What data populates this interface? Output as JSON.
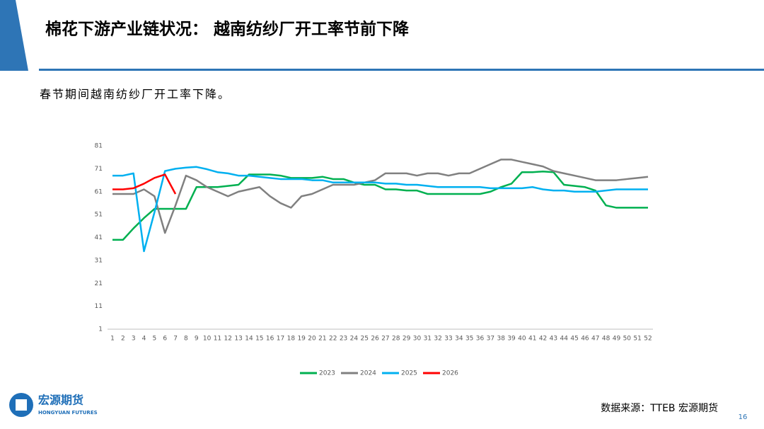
{
  "header": {
    "title": "棉花下游产业链状况：  越南纺纱厂开工率节前下降",
    "subtitle": "春节期间越南纺纱厂开工率下降。"
  },
  "footer": {
    "source": "数据来源：TTEB   宏源期货",
    "page": "16",
    "logo_cn": "宏源期货",
    "logo_en": "HONGYUAN FUTURES"
  },
  "chart_data": {
    "type": "line",
    "categories": [
      "1",
      "2",
      "3",
      "4",
      "5",
      "6",
      "7",
      "8",
      "9",
      "10",
      "11",
      "12",
      "13",
      "14",
      "15",
      "16",
      "17",
      "18",
      "19",
      "20",
      "21",
      "22",
      "23",
      "24",
      "25",
      "26",
      "27",
      "28",
      "29",
      "30",
      "31",
      "32",
      "33",
      "34",
      "35",
      "36",
      "37",
      "38",
      "39",
      "40",
      "41",
      "42",
      "43",
      "44",
      "45",
      "46",
      "47",
      "48",
      "49",
      "50",
      "51",
      "52"
    ],
    "ylim": [
      1,
      81
    ],
    "yticks": [
      1,
      11,
      21,
      31,
      41,
      51,
      61,
      71,
      81
    ],
    "grid": false,
    "legend": "bottom",
    "series": [
      {
        "name": "2023",
        "color": "#00b050",
        "values": [
          40,
          40,
          45,
          49.5,
          53.5,
          53.5,
          53.5,
          53.5,
          63,
          63,
          63,
          63.5,
          64,
          68.5,
          68.5,
          68.5,
          68,
          67,
          67,
          67,
          67.5,
          66.5,
          66.5,
          65,
          64,
          64,
          62,
          62,
          61.5,
          61.5,
          60,
          60,
          60,
          60,
          60,
          60,
          61,
          63,
          64.5,
          69.5,
          69.5,
          69.8,
          69.5,
          64,
          63.5,
          63,
          61.5,
          55,
          54,
          54,
          54,
          54
        ]
      },
      {
        "name": "2024",
        "color": "#808080",
        "values": [
          60,
          60,
          60,
          62,
          59,
          43,
          55,
          68,
          66,
          63,
          61,
          59,
          61,
          62,
          63,
          59,
          56,
          54,
          59,
          60,
          62,
          64,
          64,
          64,
          65,
          66,
          69,
          69,
          69,
          68,
          69,
          69,
          68,
          69,
          69,
          71,
          73,
          75,
          75,
          74,
          73,
          72,
          70,
          69,
          68,
          67,
          66,
          66,
          66,
          66.5,
          67,
          67.5
        ]
      },
      {
        "name": "2025",
        "color": "#00b0f0",
        "values": [
          68,
          68,
          69,
          35,
          52,
          70,
          71,
          71.5,
          71.8,
          70.8,
          69.5,
          69,
          68,
          68,
          67.5,
          67,
          66.5,
          66.5,
          66.5,
          66,
          66,
          65,
          65,
          65,
          65,
          65,
          64.5,
          64.5,
          64,
          64,
          63.5,
          63,
          63,
          63,
          63,
          63,
          62.5,
          62.5,
          62.5,
          62.5,
          63,
          62,
          61.5,
          61.5,
          61,
          61,
          61,
          61.5,
          62,
          62,
          62,
          62
        ]
      },
      {
        "name": "2026",
        "color": "#ff0000",
        "values": [
          62,
          62,
          62.5,
          64.5,
          67,
          68.5,
          60,
          null,
          null,
          null,
          null,
          null,
          null,
          null,
          null,
          null,
          null,
          null,
          null,
          null,
          null,
          null,
          null,
          null,
          null,
          null,
          null,
          null,
          null,
          null,
          null,
          null,
          null,
          null,
          null,
          null,
          null,
          null,
          null,
          null,
          null,
          null,
          null,
          null,
          null,
          null,
          null,
          null,
          null,
          null,
          null,
          null
        ]
      }
    ]
  }
}
